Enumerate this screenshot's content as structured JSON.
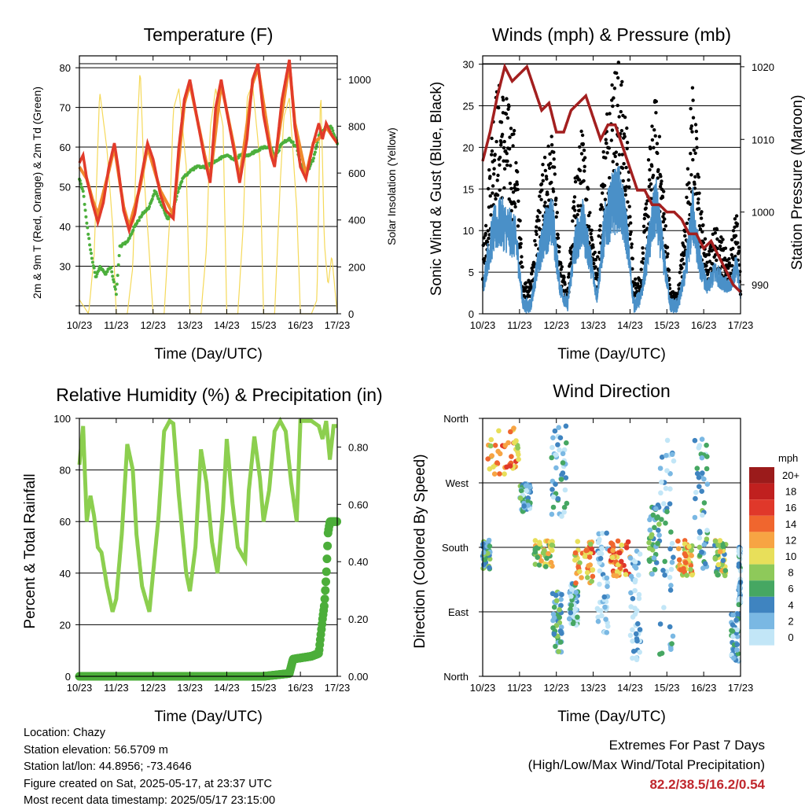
{
  "colors": {
    "temp_2m": "#e23b2a",
    "temp_9m": "#f08a2c",
    "dewpoint": "#4caf3c",
    "solar": "#f5d95a",
    "wind": "#4a90c8",
    "gust": "#000000",
    "pressure": "#a31f1f",
    "rh": "#8ccf4f",
    "precip": "#4cae3a",
    "extremes": "#c0272d"
  },
  "x_ticks": [
    "10/23",
    "11/23",
    "12/23",
    "13/23",
    "14/23",
    "15/23",
    "16/23",
    "17/23"
  ],
  "x_axis_label": "Time (Day/UTC)",
  "chart_data": [
    {
      "id": "temperature",
      "type": "line",
      "title": "Temperature (F)",
      "xlabel": "Time (Day/UTC)",
      "ylabel": "2m & 9m T (Red, Orange) & 2m Td (Green)",
      "ylabel_right": "Solar Insolation (Yellow)",
      "ylim": [
        18,
        83
      ],
      "yticks": [
        20,
        30,
        40,
        50,
        60,
        70,
        80
      ],
      "ytick_labels": [
        "",
        "30",
        "40",
        "50",
        "60",
        "70",
        "80"
      ],
      "ylim_right": [
        0,
        1100
      ],
      "yticks_right": [
        0,
        200,
        400,
        600,
        800,
        1000
      ],
      "grid": true,
      "series": [
        {
          "name": "2m T",
          "x": [
            10.0,
            10.1,
            10.2,
            10.35,
            10.5,
            10.65,
            10.8,
            10.95,
            11.05,
            11.2,
            11.35,
            11.5,
            11.65,
            11.85,
            12.0,
            12.2,
            12.35,
            12.55,
            12.7,
            12.85,
            13.0,
            13.2,
            13.4,
            13.55,
            13.7,
            13.85,
            14.0,
            14.2,
            14.35,
            14.55,
            14.7,
            14.85,
            15.0,
            15.2,
            15.3,
            15.5,
            15.7,
            15.85,
            16.0,
            16.15,
            16.35,
            16.5,
            16.6,
            16.7,
            16.85,
            17.0
          ],
          "values": [
            56,
            58,
            52,
            46,
            41,
            46,
            55,
            61,
            55,
            44,
            39,
            43,
            51,
            61,
            57,
            48,
            44,
            42,
            60,
            72,
            77,
            67,
            57,
            51,
            70,
            77,
            69,
            59,
            51,
            62,
            77,
            81,
            68,
            58,
            55,
            72,
            82,
            65,
            55,
            52,
            61,
            66,
            62,
            66,
            63,
            61
          ]
        },
        {
          "name": "9m T",
          "x": [
            10.0,
            10.2,
            10.35,
            10.5,
            10.8,
            10.95,
            11.2,
            11.35,
            11.65,
            11.85,
            12.2,
            12.55,
            12.85,
            13.0,
            13.4,
            13.55,
            13.85,
            14.2,
            14.35,
            14.7,
            14.85,
            15.2,
            15.3,
            15.7,
            15.85,
            16.15,
            16.35,
            16.6,
            16.7,
            17.0
          ],
          "values": [
            55,
            52,
            47,
            43,
            54,
            60,
            45,
            40,
            50,
            60,
            49,
            43,
            71,
            76,
            58,
            52,
            76,
            60,
            52,
            76,
            80,
            59,
            56,
            81,
            66,
            53,
            61,
            63,
            65,
            61
          ]
        },
        {
          "name": "2m Td",
          "x": [
            10.0,
            10.1,
            10.2,
            10.3,
            10.45,
            10.55,
            10.7,
            10.85,
            11.0,
            11.1,
            11.3,
            11.5,
            11.7,
            11.9,
            12.05,
            12.25,
            12.4,
            12.5,
            12.65,
            12.8,
            13.0,
            13.2,
            13.4,
            13.6,
            13.8,
            14.0,
            14.2,
            14.4,
            14.6,
            14.8,
            15.0,
            15.2,
            15.3,
            15.5,
            15.7,
            15.9,
            16.0,
            16.15,
            16.35,
            16.5,
            16.7,
            16.85,
            17.0
          ],
          "values": [
            52,
            49,
            41,
            34,
            27,
            30,
            28,
            30,
            23,
            35,
            36,
            40,
            43,
            45,
            49,
            45,
            42,
            43,
            48,
            52,
            54,
            55,
            55,
            56,
            57,
            58,
            57,
            58,
            58,
            59,
            60,
            60,
            57,
            61,
            62,
            60,
            56,
            53,
            57,
            63,
            65,
            65,
            61
          ]
        },
        {
          "name": "Solar Insolation",
          "axis": "right",
          "x": [
            10.0,
            10.25,
            10.4,
            10.55,
            10.75,
            10.9,
            11.0,
            11.3,
            11.45,
            11.55,
            11.65,
            11.75,
            11.9,
            12.0,
            12.3,
            12.45,
            12.55,
            12.7,
            12.9,
            13.0,
            13.3,
            13.45,
            13.55,
            13.7,
            13.9,
            14.0,
            14.3,
            14.45,
            14.55,
            14.7,
            14.9,
            15.0,
            15.3,
            15.45,
            15.55,
            15.7,
            15.9,
            16.0,
            16.3,
            16.45,
            16.55,
            16.65,
            16.75,
            16.85,
            17.0
          ],
          "values": [
            60,
            0,
            250,
            950,
            700,
            380,
            0,
            0,
            200,
            720,
            1050,
            600,
            250,
            0,
            0,
            400,
            870,
            960,
            630,
            0,
            0,
            280,
            790,
            960,
            800,
            0,
            0,
            380,
            920,
            980,
            650,
            0,
            0,
            550,
            840,
            920,
            450,
            0,
            0,
            60,
            980,
            300,
            120,
            250,
            0
          ]
        }
      ]
    },
    {
      "id": "winds",
      "type": "line",
      "title": "Winds (mph) & Pressure (mb)",
      "xlabel": "Time (Day/UTC)",
      "ylabel": "Sonic Wind & Gust (Blue, Black)",
      "ylabel_right": "Station Pressure (Maroon)",
      "ylim": [
        0,
        31
      ],
      "yticks": [
        0,
        5,
        10,
        15,
        20,
        25,
        30
      ],
      "ylim_right": [
        986,
        1021.5
      ],
      "yticks_right": [
        990,
        1000,
        1010,
        1020
      ],
      "grid": true,
      "series": [
        {
          "name": "Sonic Wind",
          "x": [
            10.0,
            10.15,
            10.3,
            10.5,
            10.7,
            10.9,
            11.1,
            11.3,
            11.5,
            11.7,
            11.9,
            12.1,
            12.3,
            12.5,
            12.7,
            12.9,
            13.1,
            13.3,
            13.5,
            13.7,
            13.9,
            14.1,
            14.3,
            14.5,
            14.7,
            14.9,
            15.1,
            15.3,
            15.5,
            15.7,
            15.9,
            16.1,
            16.3,
            16.5,
            16.7,
            16.9,
            17.0
          ],
          "values": [
            3,
            7,
            10,
            11,
            10,
            9,
            1,
            1,
            6,
            10,
            11,
            3,
            1,
            8,
            11,
            7,
            2,
            10,
            13,
            14,
            10,
            1,
            2,
            8,
            13,
            7,
            1,
            1,
            5,
            12,
            6,
            3,
            5,
            4,
            3,
            6,
            2
          ]
        },
        {
          "name": "Gust",
          "x": [
            10.0,
            10.15,
            10.3,
            10.5,
            10.7,
            10.9,
            11.1,
            11.3,
            11.5,
            11.7,
            11.9,
            12.1,
            12.3,
            12.5,
            12.7,
            12.9,
            13.1,
            13.3,
            13.5,
            13.7,
            13.9,
            14.1,
            14.3,
            14.5,
            14.7,
            14.9,
            15.1,
            15.3,
            15.5,
            15.7,
            15.9,
            16.1,
            16.3,
            16.5,
            16.7,
            16.9,
            17.0
          ],
          "values": [
            6,
            12,
            20,
            21,
            19,
            16,
            3,
            3,
            10,
            15,
            16,
            5,
            2,
            12,
            17,
            11,
            4,
            17,
            22,
            23,
            18,
            3,
            4,
            14,
            20,
            12,
            2,
            2,
            9,
            22,
            11,
            5,
            8,
            7,
            5,
            10,
            3
          ]
        },
        {
          "name": "Station Pressure",
          "axis": "right",
          "x": [
            10.0,
            10.2,
            10.4,
            10.6,
            10.8,
            11.0,
            11.2,
            11.4,
            11.6,
            11.8,
            12.0,
            12.2,
            12.4,
            12.6,
            12.8,
            13.0,
            13.2,
            13.4,
            13.6,
            13.8,
            14.0,
            14.2,
            14.4,
            14.6,
            14.8,
            15.0,
            15.2,
            15.4,
            15.6,
            15.8,
            16.0,
            16.2,
            16.4,
            16.6,
            16.8,
            17.0
          ],
          "values": [
            1007,
            1011,
            1016,
            1020,
            1018,
            1019,
            1020,
            1017,
            1014,
            1015,
            1011,
            1011,
            1014,
            1015,
            1016,
            1013,
            1010,
            1012,
            1012,
            1009,
            1006,
            1003,
            1003,
            1001,
            1001,
            1000,
            1000,
            999,
            997,
            997,
            995,
            996,
            994,
            992,
            990,
            989
          ]
        }
      ]
    },
    {
      "id": "humidity",
      "type": "line",
      "title": "Relative Humidity (%) & Precipitation (in)",
      "xlabel": "Time (Day/UTC)",
      "ylabel": "Percent & Total Rainfall",
      "ylim": [
        0,
        100
      ],
      "yticks": [
        0,
        20,
        40,
        60,
        80,
        100
      ],
      "ylim_right": [
        0,
        0.9
      ],
      "yticks_right": [
        "0.00",
        "0.20",
        "0.40",
        "0.60",
        "0.80"
      ],
      "grid": true,
      "series": [
        {
          "name": "Relative Humidity",
          "x": [
            10.0,
            10.1,
            10.2,
            10.3,
            10.4,
            10.5,
            10.6,
            10.75,
            10.9,
            11.0,
            11.15,
            11.3,
            11.45,
            11.55,
            11.7,
            11.9,
            12.0,
            12.15,
            12.3,
            12.45,
            12.55,
            12.7,
            12.9,
            13.0,
            13.15,
            13.3,
            13.45,
            13.6,
            13.75,
            13.9,
            14.0,
            14.15,
            14.3,
            14.5,
            14.6,
            14.75,
            14.9,
            15.0,
            15.15,
            15.3,
            15.45,
            15.6,
            15.75,
            15.9,
            16.0,
            16.15,
            16.3,
            16.5,
            16.6,
            16.7,
            16.8,
            16.9,
            17.0
          ],
          "values": [
            82,
            97,
            60,
            70,
            62,
            50,
            48,
            35,
            25,
            30,
            55,
            90,
            80,
            55,
            35,
            25,
            40,
            62,
            95,
            99,
            98,
            70,
            40,
            33,
            50,
            88,
            75,
            52,
            40,
            65,
            92,
            68,
            50,
            45,
            72,
            93,
            77,
            60,
            72,
            95,
            99,
            95,
            75,
            60,
            99,
            99,
            99,
            97,
            92,
            99,
            84,
            97,
            97
          ]
        },
        {
          "name": "Total Precipitation",
          "axis": "right",
          "x": [
            10.0,
            15.0,
            15.7,
            15.8,
            16.3,
            16.5,
            16.6,
            16.65,
            16.7,
            16.75,
            16.8,
            17.0
          ],
          "values": [
            0.0,
            0.0,
            0.01,
            0.06,
            0.07,
            0.08,
            0.2,
            0.25,
            0.35,
            0.5,
            0.54,
            0.54
          ]
        }
      ]
    },
    {
      "id": "wind_direction",
      "type": "scatter",
      "title": "Wind Direction",
      "xlabel": "Time (Day/UTC)",
      "ylabel": "Direction (Colored By Speed)",
      "ytick_labels": [
        "North",
        "East",
        "South",
        "West",
        "North"
      ],
      "ylim": [
        0,
        360
      ],
      "legend_title": "mph",
      "legend_placement": "right",
      "legend": [
        {
          "label": "20+",
          "color": "#9b1b1b"
        },
        {
          "label": "18",
          "color": "#c0201f"
        },
        {
          "label": "16",
          "color": "#e0382a"
        },
        {
          "label": "14",
          "color": "#f0662e"
        },
        {
          "label": "12",
          "color": "#f7a443"
        },
        {
          "label": "10",
          "color": "#e8df5a"
        },
        {
          "label": "8",
          "color": "#8ec95a"
        },
        {
          "label": "6",
          "color": "#46a762"
        },
        {
          "label": "4",
          "color": "#3f84c0"
        },
        {
          "label": "2",
          "color": "#7ab8e3"
        },
        {
          "label": "0",
          "color": "#c2e6f7"
        }
      ],
      "clusters": [
        {
          "x": [
            10.0,
            10.2
          ],
          "dir": [
            150,
            190
          ],
          "speed": 5
        },
        {
          "x": [
            10.1,
            11.0
          ],
          "dir": [
            280,
            350
          ],
          "speed": 12
        },
        {
          "x": [
            11.0,
            11.3
          ],
          "dir": [
            230,
            270
          ],
          "speed": 4
        },
        {
          "x": [
            11.4,
            11.9
          ],
          "dir": [
            150,
            190
          ],
          "speed": 9
        },
        {
          "x": [
            11.85,
            12.3
          ],
          "dir": [
            220,
            350
          ],
          "speed": 2
        },
        {
          "x": [
            11.9,
            12.15
          ],
          "dir": [
            30,
            120
          ],
          "speed": 5
        },
        {
          "x": [
            12.35,
            12.6
          ],
          "dir": [
            70,
            130
          ],
          "speed": 3
        },
        {
          "x": [
            12.5,
            13.0
          ],
          "dir": [
            130,
            190
          ],
          "speed": 12
        },
        {
          "x": [
            13.1,
            13.4
          ],
          "dir": [
            60,
            200
          ],
          "speed": 1
        },
        {
          "x": [
            13.45,
            14.0
          ],
          "dir": [
            140,
            190
          ],
          "speed": 13
        },
        {
          "x": [
            14.0,
            14.3
          ],
          "dir": [
            20,
            180
          ],
          "speed": 1
        },
        {
          "x": [
            14.5,
            14.8
          ],
          "dir": [
            140,
            240
          ],
          "speed": 5
        },
        {
          "x": [
            14.8,
            15.2
          ],
          "dir": [
            30,
            330
          ],
          "speed": 3
        },
        {
          "x": [
            15.3,
            15.7
          ],
          "dir": [
            140,
            190
          ],
          "speed": 11
        },
        {
          "x": [
            15.75,
            16.1
          ],
          "dir": [
            150,
            340
          ],
          "speed": 4
        },
        {
          "x": [
            16.3,
            16.6
          ],
          "dir": [
            140,
            190
          ],
          "speed": 8
        },
        {
          "x": [
            16.75,
            16.95
          ],
          "dir": [
            20,
            90
          ],
          "speed": 3
        },
        {
          "x": [
            16.95,
            17.0
          ],
          "dir": [
            100,
            180
          ],
          "speed": 2
        }
      ]
    }
  ],
  "footer": {
    "location": "Location: Chazy",
    "elevation": "Station elevation: 56.5709 m",
    "latlon": "Station lat/lon: 44.8956; -73.4646",
    "created": "Figure created on Sat, 2025-05-17, at 23:37 UTC",
    "recent": "Most recent data timestamp: 2025/05/17 23:15:00"
  },
  "extremes": {
    "title": "Extremes For Past 7 Days",
    "subtitle": "(High/Low/Max Wind/Total Precipitation)",
    "values": "82.2/38.5/16.2/0.54"
  }
}
